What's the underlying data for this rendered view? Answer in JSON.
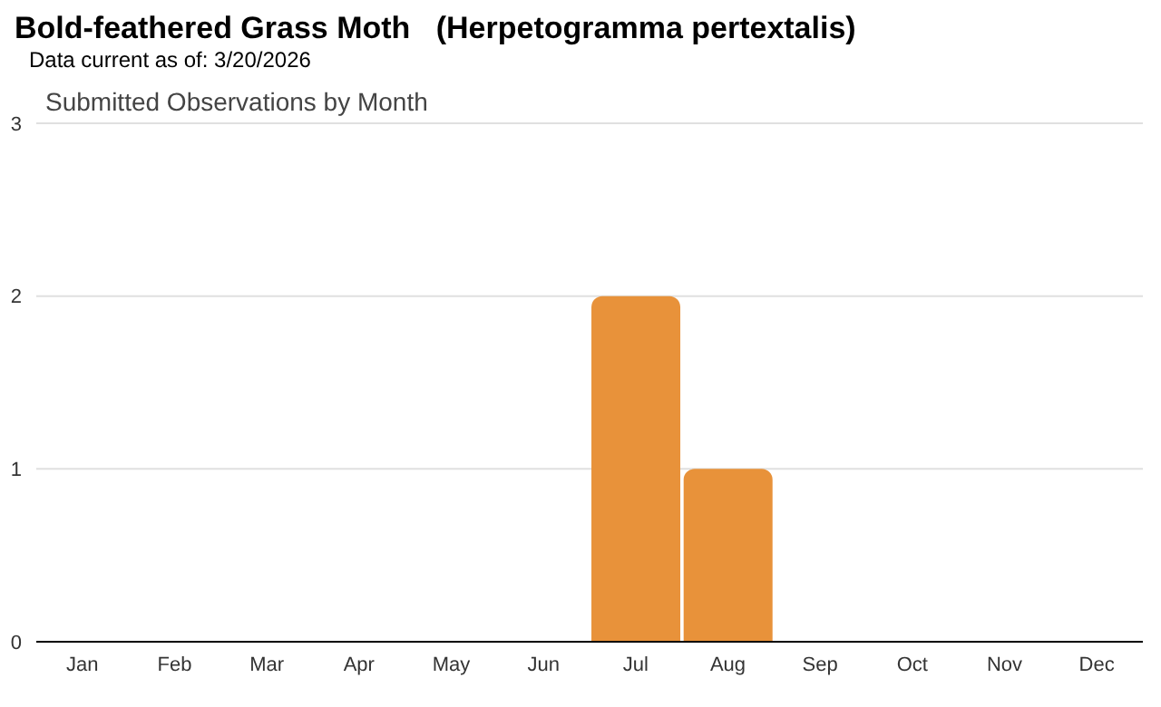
{
  "chart_data": {
    "type": "bar",
    "title": "Bold-feathered Grass Moth   (Herpetogramma pertextalis)",
    "subtitle": "Submitted Observations by Month",
    "annotations": [
      "Data current as of: 3/20/2026"
    ],
    "categories": [
      "Jan",
      "Feb",
      "Mar",
      "Apr",
      "May",
      "Jun",
      "Jul",
      "Aug",
      "Sep",
      "Oct",
      "Nov",
      "Dec"
    ],
    "values": [
      0,
      0,
      0,
      0,
      0,
      0,
      2,
      1,
      0,
      0,
      0,
      0
    ],
    "color": "#e8923a",
    "ylim": [
      0,
      3
    ],
    "yticks": [
      0,
      1,
      2,
      3
    ],
    "grid": "y"
  }
}
